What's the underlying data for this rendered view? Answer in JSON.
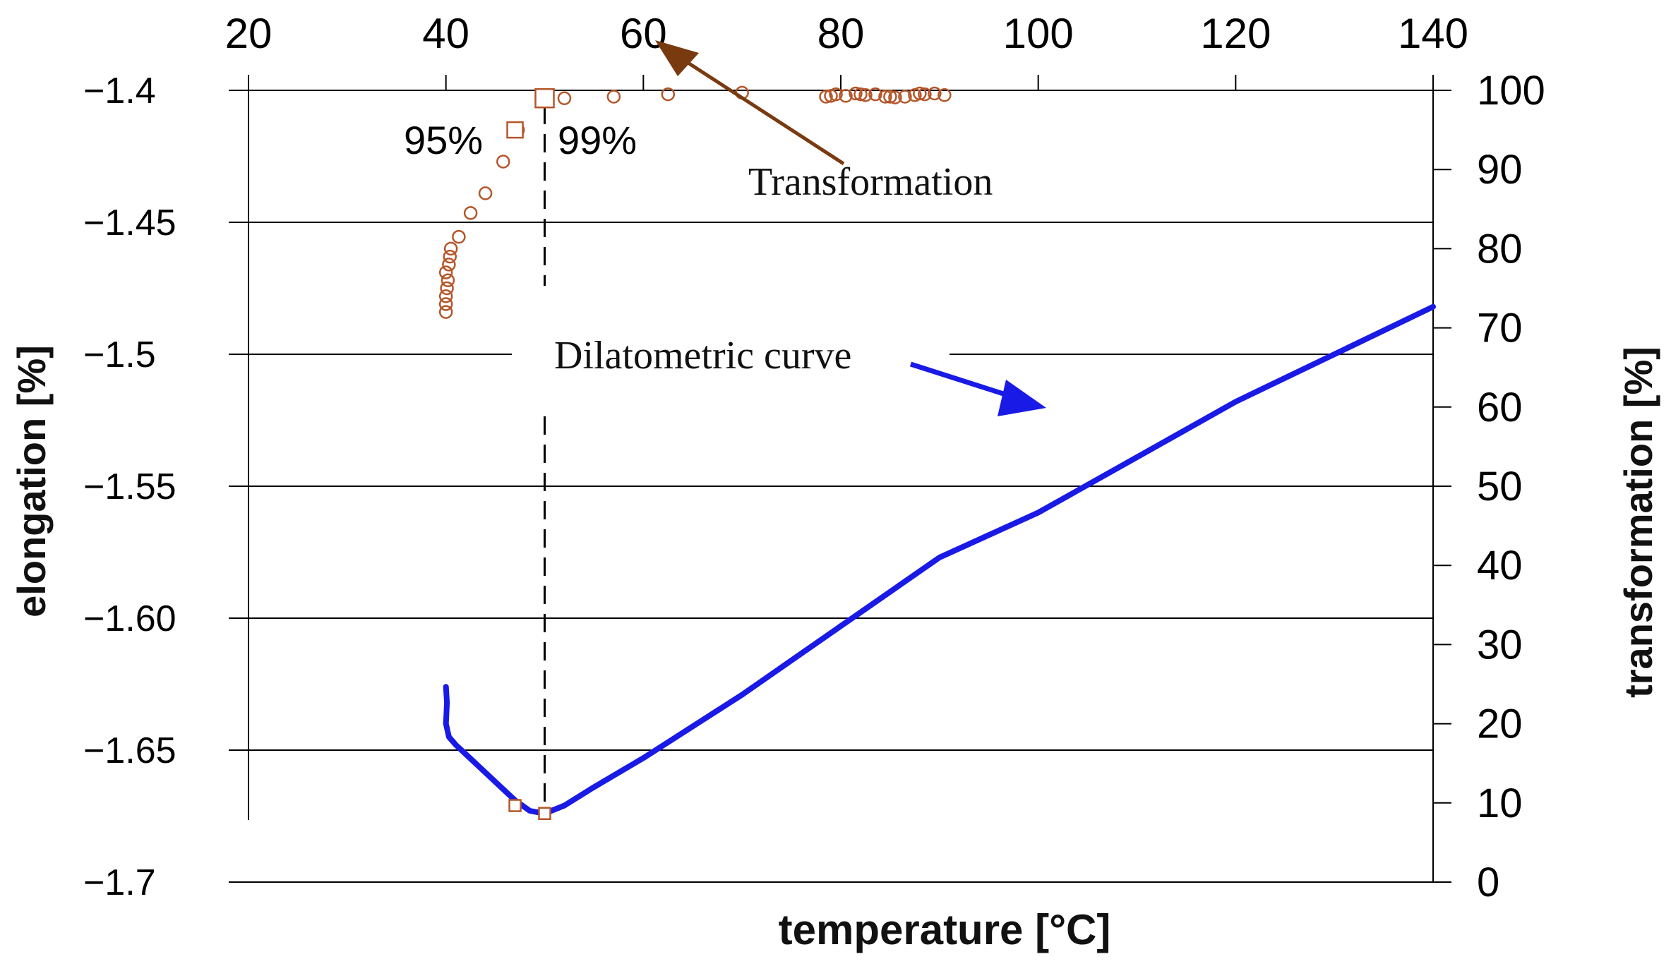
{
  "chart_data": {
    "type": "scatter",
    "title": "",
    "xlabel": "temperature [°C]",
    "ylabel_left": "elongation [%]",
    "ylabel_right": "transformation [%]",
    "xlim": [
      20,
      140
    ],
    "ylim_left": [
      -1.7,
      -1.4
    ],
    "ylim_right": [
      0,
      100
    ],
    "x_ticks": [
      "20",
      "40",
      "60",
      "80",
      "100",
      "120",
      "140"
    ],
    "y_left_ticks": [
      "−1.4",
      "−1.45",
      "−1.5",
      "−1.55",
      "−1.60",
      "−1.65",
      "−1.7"
    ],
    "y_right_ticks": [
      "100",
      "90",
      "80",
      "70",
      "60",
      "50",
      "40",
      "30",
      "20",
      "10",
      "0"
    ],
    "colors": {
      "dilatometric": "#1a1ae6",
      "transformation": "#b5562a",
      "arrow_transformation": "#7a3a10",
      "grid": "#000000"
    },
    "series": [
      {
        "name": "Dilatometric curve",
        "axis": "left",
        "type": "line",
        "x": [
          40,
          40.1,
          40,
          40.3,
          41,
          43,
          45,
          47,
          48.5,
          50,
          52,
          55,
          60,
          70,
          80,
          90,
          100,
          110,
          120,
          130,
          140
        ],
        "y": [
          -1.626,
          -1.632,
          -1.64,
          -1.645,
          -1.648,
          -1.655,
          -1.662,
          -1.669,
          -1.673,
          -1.674,
          -1.671,
          -1.664,
          -1.653,
          -1.629,
          -1.603,
          -1.577,
          -1.56,
          -1.539,
          -1.518,
          -1.5,
          -1.482
        ]
      },
      {
        "name": "Transformation",
        "axis": "right",
        "type": "scatter",
        "x": [
          40,
          40,
          40,
          40.1,
          40.2,
          40,
          40.3,
          40.5,
          40.4,
          41.3,
          42.5,
          44,
          45.8,
          47.3,
          52,
          57,
          62.5,
          70,
          78.5,
          79.5,
          80.5,
          81.5,
          82.5,
          83.5,
          84.5,
          85.5,
          86.5,
          87.5,
          88.5,
          89.5,
          90.5,
          79,
          82,
          85,
          88
        ],
        "y": [
          72,
          73,
          74,
          75,
          76,
          77,
          78,
          80,
          79,
          81.5,
          84.5,
          87,
          91,
          95,
          99,
          99.2,
          99.5,
          99.7,
          99.2,
          99.5,
          99.3,
          99.6,
          99.4,
          99.5,
          99.2,
          99.1,
          99.2,
          99.4,
          99.5,
          99.6,
          99.4,
          99.3,
          99.5,
          99.2,
          99.6
        ]
      }
    ],
    "markers": [
      {
        "name": "95%-left",
        "axis": "left",
        "x": 47,
        "y": -1.671
      },
      {
        "name": "99%-left",
        "axis": "left",
        "x": 50,
        "y": -1.674
      },
      {
        "name": "95%-right",
        "axis": "right",
        "x": 47,
        "y": 95
      },
      {
        "name": "99%-right",
        "axis": "right",
        "x": 50,
        "y": 99
      }
    ],
    "vertical_dashed_x": 50,
    "annotations": {
      "label_95": "95%",
      "label_99": "99%",
      "transformation": "Transformation",
      "dilatometric": "Dilatometric curve"
    }
  }
}
